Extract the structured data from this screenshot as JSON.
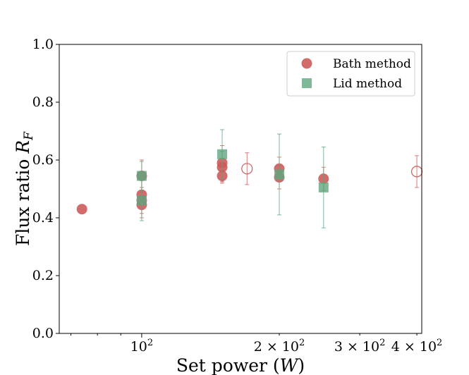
{
  "chart_data": {
    "type": "scatter",
    "xscale": "log",
    "xlim": [
      66,
      410
    ],
    "ylim": [
      0.0,
      1.0
    ],
    "xlabel_main": "Set power (",
    "xlabel_var": "W",
    "xlabel_close": ")",
    "ylabel_main": "Flux ratio ",
    "ylabel_var": "R",
    "ylabel_sub": "F",
    "yticks": [
      {
        "value": 0.0,
        "label": "0.0"
      },
      {
        "value": 0.2,
        "label": "0.2"
      },
      {
        "value": 0.4,
        "label": "0.4"
      },
      {
        "value": 0.6,
        "label": "0.6"
      },
      {
        "value": 0.8,
        "label": "0.8"
      },
      {
        "value": 1.0,
        "label": "1.0"
      }
    ],
    "xticks_major": [
      {
        "value": 100,
        "base": "10",
        "exp": "2",
        "coef": ""
      }
    ],
    "xticks_labeled_minor": [
      {
        "value": 200,
        "base": "10",
        "exp": "2",
        "coef": "2 × "
      },
      {
        "value": 300,
        "base": "10",
        "exp": "2",
        "coef": "3 × "
      },
      {
        "value": 400,
        "base": "10",
        "exp": "2",
        "coef": "4 × "
      }
    ],
    "xticks_minor_unlabeled": [
      70,
      80,
      90
    ],
    "colors": {
      "bath": "#cd5c5c",
      "lid": "#5fa77f"
    },
    "series": [
      {
        "name": "Bath method",
        "marker": "circle",
        "points": [
          {
            "x": 74,
            "y": 0.43,
            "err": 0
          },
          {
            "x": 100,
            "y": 0.545,
            "err": 0.055
          },
          {
            "x": 100,
            "y": 0.48,
            "err": 0.05
          },
          {
            "x": 100,
            "y": 0.445,
            "err": 0.045
          },
          {
            "x": 100,
            "y": 0.46,
            "err": 0.045
          },
          {
            "x": 150,
            "y": 0.59,
            "err": 0.06
          },
          {
            "x": 150,
            "y": 0.575,
            "err": 0.055
          },
          {
            "x": 150,
            "y": 0.545,
            "err": 0.02
          },
          {
            "x": 200,
            "y": 0.57,
            "err": 0.04
          },
          {
            "x": 200,
            "y": 0.54,
            "err": 0.04
          },
          {
            "x": 250,
            "y": 0.535,
            "err": 0.04
          }
        ]
      },
      {
        "name": "Lid method",
        "marker": "square",
        "points": [
          {
            "x": 100,
            "y": 0.545,
            "err": 0.05
          },
          {
            "x": 100,
            "y": 0.46,
            "err": 0.07
          },
          {
            "x": 150,
            "y": 0.62,
            "err": 0.085
          },
          {
            "x": 200,
            "y": 0.55,
            "err": 0.14
          },
          {
            "x": 250,
            "y": 0.505,
            "err": 0.14
          }
        ]
      },
      {
        "name": "Bath method (open)",
        "marker": "open-circle",
        "points": [
          {
            "x": 170,
            "y": 0.57,
            "err": 0.055
          },
          {
            "x": 400,
            "y": 0.56,
            "err": 0.055
          }
        ]
      }
    ],
    "legend": {
      "position": "top-right",
      "entries": [
        {
          "label": "Bath method",
          "marker": "circle"
        },
        {
          "label": "Lid method",
          "marker": "square"
        }
      ]
    }
  }
}
